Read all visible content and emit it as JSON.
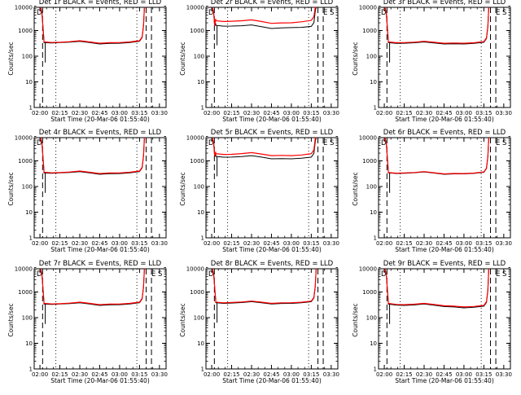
{
  "xlabel": "Start Time (20-Mar-06 01:55:40)",
  "ylabel": "Counts/sec",
  "x_ticks": [
    "02:00",
    "02:15",
    "02:30",
    "02:45",
    "03:00",
    "03:15",
    "03:30"
  ],
  "y_ticks": [
    "1",
    "10",
    "100",
    "1000",
    "10000"
  ],
  "colors": {
    "events": "#000000",
    "lld": "#ff0000"
  },
  "chart_data": [
    {
      "type": "line",
      "title": "Det 1r BLACK = Events, RED = LLD",
      "y_scale": "log",
      "ylim": [
        1,
        10000
      ],
      "xlim": [
        "01:55:40",
        "03:35"
      ],
      "x_knots": [
        "02:03",
        "02:15",
        "02:30",
        "02:45",
        "03:00",
        "03:15"
      ],
      "events": [
        340,
        340,
        380,
        300,
        320,
        380
      ],
      "lld": [
        360,
        350,
        400,
        320,
        340,
        400
      ],
      "corner_labels": [
        "D"
      ]
    },
    {
      "type": "line",
      "title": "Det 2r BLACK = Events, RED = LLD",
      "y_scale": "log",
      "ylim": [
        1,
        10000
      ],
      "xlim": [
        "01:55:40",
        "03:35"
      ],
      "x_knots": [
        "02:03",
        "02:15",
        "02:30",
        "02:45",
        "03:00",
        "03:15"
      ],
      "events": [
        1600,
        1500,
        1650,
        1200,
        1300,
        1450
      ],
      "lld": [
        2400,
        2300,
        2600,
        1900,
        2000,
        2500
      ],
      "corner_labels": [
        "D",
        "E",
        "S"
      ]
    },
    {
      "type": "line",
      "title": "Det 3r BLACK = Events, RED = LLD",
      "y_scale": "log",
      "ylim": [
        1,
        10000
      ],
      "xlim": [
        "01:55:40",
        "03:35"
      ],
      "x_knots": [
        "02:03",
        "02:15",
        "02:30",
        "02:45",
        "03:00",
        "03:15"
      ],
      "events": [
        340,
        320,
        360,
        300,
        300,
        350
      ],
      "lld": [
        360,
        340,
        380,
        320,
        320,
        370
      ],
      "corner_labels": [
        "D",
        "E",
        "S"
      ]
    },
    {
      "type": "line",
      "title": "Det 4r BLACK = Events, RED = LLD",
      "y_scale": "log",
      "ylim": [
        1,
        10000
      ],
      "xlim": [
        "01:55:40",
        "03:35"
      ],
      "x_knots": [
        "02:03",
        "02:15",
        "02:30",
        "02:45",
        "03:00",
        "03:15"
      ],
      "events": [
        340,
        340,
        380,
        300,
        320,
        380
      ],
      "lld": [
        360,
        350,
        400,
        320,
        340,
        400
      ],
      "corner_labels": [
        "D"
      ]
    },
    {
      "type": "line",
      "title": "Det 5r BLACK = Events, RED = LLD",
      "y_scale": "log",
      "ylim": [
        1,
        10000
      ],
      "xlim": [
        "01:55:40",
        "03:35"
      ],
      "x_knots": [
        "02:03",
        "02:15",
        "02:30",
        "02:45",
        "03:00",
        "03:15"
      ],
      "events": [
        1500,
        1400,
        1600,
        1200,
        1200,
        1400
      ],
      "lld": [
        1900,
        1800,
        2100,
        1600,
        1600,
        1900
      ],
      "corner_labels": [
        "D",
        "E",
        "S"
      ]
    },
    {
      "type": "line",
      "title": "Det 6r BLACK = Events, RED = LLD",
      "y_scale": "log",
      "ylim": [
        1,
        10000
      ],
      "xlim": [
        "01:55:40",
        "03:35"
      ],
      "x_knots": [
        "02:03",
        "02:15",
        "02:30",
        "02:45",
        "03:00",
        "03:15"
      ],
      "events": [
        340,
        330,
        370,
        300,
        310,
        360
      ],
      "lld": [
        350,
        340,
        380,
        310,
        320,
        370
      ],
      "corner_labels": [
        "D",
        "E",
        "S"
      ]
    },
    {
      "type": "line",
      "title": "Det 7r BLACK = Events, RED = LLD",
      "y_scale": "log",
      "ylim": [
        1,
        10000
      ],
      "xlim": [
        "01:55:40",
        "03:35"
      ],
      "x_knots": [
        "02:03",
        "02:15",
        "02:30",
        "02:45",
        "03:00",
        "03:15"
      ],
      "events": [
        340,
        340,
        380,
        300,
        320,
        380
      ],
      "lld": [
        360,
        350,
        400,
        320,
        340,
        400
      ],
      "corner_labels": [
        "D",
        "E",
        "S"
      ]
    },
    {
      "type": "line",
      "title": "Det 8r BLACK = Events, RED = LLD",
      "y_scale": "log",
      "ylim": [
        1,
        10000
      ],
      "xlim": [
        "01:55:40",
        "03:35"
      ],
      "x_knots": [
        "02:03",
        "02:15",
        "02:30",
        "02:45",
        "03:00",
        "03:15"
      ],
      "events": [
        380,
        370,
        420,
        340,
        360,
        420
      ],
      "lld": [
        400,
        390,
        440,
        360,
        380,
        440
      ],
      "corner_labels": [
        "D"
      ]
    },
    {
      "type": "line",
      "title": "Det 9r BLACK = Events, RED = LLD",
      "y_scale": "log",
      "ylim": [
        1,
        10000
      ],
      "xlim": [
        "01:55:40",
        "03:35"
      ],
      "x_knots": [
        "02:03",
        "02:15",
        "02:30",
        "02:45",
        "03:00",
        "03:15"
      ],
      "events": [
        340,
        300,
        340,
        270,
        240,
        280
      ],
      "lld": [
        360,
        320,
        360,
        290,
        260,
        300
      ],
      "corner_labels": [
        "D",
        "E",
        "S"
      ]
    }
  ]
}
